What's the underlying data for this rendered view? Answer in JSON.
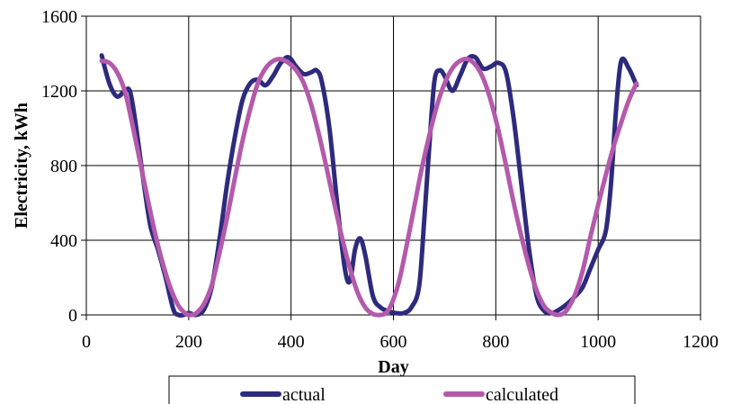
{
  "chart_data": {
    "type": "line",
    "title": "",
    "xlabel": "Day",
    "ylabel": "Electricity, kWh",
    "xlim": [
      0,
      1200
    ],
    "ylim": [
      0,
      1600
    ],
    "xticks": [
      0,
      200,
      400,
      600,
      800,
      1000,
      1200
    ],
    "yticks": [
      0,
      400,
      800,
      1200,
      1600
    ],
    "grid": true,
    "legend_position": "bottom",
    "series": [
      {
        "name": "actual",
        "color": "#2e2a7c",
        "x": [
          30,
          45,
          60,
          75,
          85,
          95,
          110,
          125,
          140,
          155,
          170,
          180,
          190,
          200,
          215,
          230,
          245,
          260,
          275,
          290,
          305,
          320,
          335,
          350,
          365,
          380,
          395,
          410,
          425,
          440,
          450,
          460,
          475,
          490,
          505,
          515,
          525,
          535,
          545,
          560,
          575,
          590,
          605,
          620,
          635,
          650,
          660,
          670,
          680,
          690,
          700,
          715,
          730,
          745,
          760,
          775,
          790,
          805,
          820,
          835,
          850,
          865,
          880,
          895,
          910,
          925,
          940,
          955,
          970,
          985,
          1000,
          1015,
          1025,
          1035,
          1045,
          1060,
          1075
        ],
        "y": [
          1390,
          1240,
          1170,
          1200,
          1200,
          1050,
          750,
          480,
          350,
          200,
          30,
          0,
          0,
          10,
          0,
          30,
          150,
          400,
          700,
          950,
          1150,
          1240,
          1260,
          1230,
          1280,
          1350,
          1380,
          1330,
          1290,
          1300,
          1310,
          1250,
          1000,
          600,
          250,
          180,
          350,
          410,
          320,
          100,
          40,
          20,
          10,
          10,
          40,
          150,
          500,
          900,
          1250,
          1310,
          1280,
          1200,
          1280,
          1370,
          1380,
          1320,
          1330,
          1350,
          1300,
          1050,
          700,
          350,
          100,
          20,
          10,
          30,
          60,
          100,
          150,
          250,
          350,
          450,
          700,
          1100,
          1360,
          1320,
          1230
        ]
      },
      {
        "name": "calculated",
        "color": "#b45aac",
        "x": [
          30,
          45,
          60,
          75,
          90,
          105,
          120,
          135,
          150,
          165,
          180,
          195,
          205,
          215,
          230,
          245,
          260,
          275,
          290,
          305,
          320,
          335,
          350,
          365,
          380,
          395,
          410,
          425,
          440,
          455,
          470,
          485,
          500,
          515,
          530,
          545,
          560,
          575,
          585,
          595,
          610,
          625,
          640,
          655,
          670,
          685,
          700,
          715,
          730,
          745,
          760,
          775,
          790,
          805,
          820,
          835,
          850,
          865,
          880,
          895,
          910,
          920,
          930,
          940,
          955,
          970,
          985,
          1000,
          1015,
          1030,
          1045,
          1060,
          1075
        ],
        "y": [
          1360,
          1350,
          1300,
          1200,
          1020,
          820,
          620,
          430,
          270,
          140,
          50,
          5,
          0,
          10,
          60,
          160,
          330,
          520,
          730,
          930,
          1100,
          1240,
          1320,
          1360,
          1370,
          1350,
          1310,
          1240,
          1120,
          960,
          780,
          590,
          410,
          250,
          120,
          40,
          5,
          0,
          10,
          50,
          170,
          360,
          570,
          780,
          960,
          1120,
          1240,
          1320,
          1360,
          1370,
          1340,
          1270,
          1150,
          990,
          800,
          600,
          420,
          260,
          130,
          45,
          10,
          0,
          5,
          30,
          110,
          240,
          420,
          590,
          750,
          900,
          1030,
          1150,
          1240
        ]
      }
    ]
  }
}
